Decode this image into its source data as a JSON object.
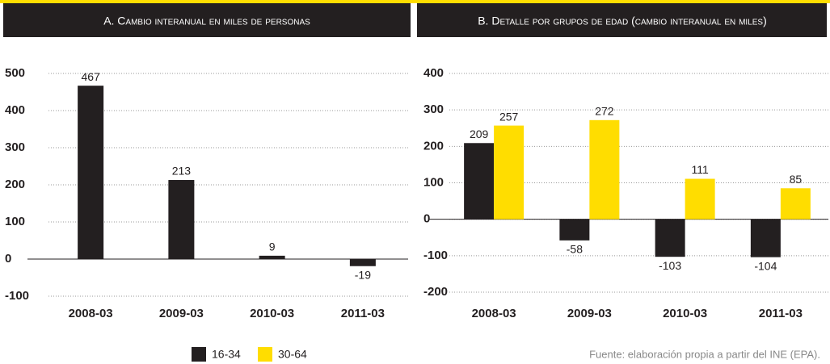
{
  "chart_data": [
    {
      "type": "bar",
      "title": "A. Cambio interanual en miles de personas",
      "categories": [
        "2008-03",
        "2009-03",
        "2010-03",
        "2011-03"
      ],
      "values": [
        467,
        213,
        9,
        -19
      ],
      "color": "#231f20",
      "ylim": [
        -100,
        500
      ],
      "yticks": [
        -100,
        0,
        100,
        200,
        300,
        400,
        500
      ],
      "grid": true
    },
    {
      "type": "grouped-bar",
      "title": "B. Detalle por grupos de edad (cambio interanual en miles)",
      "categories": [
        "2008-03",
        "2009-03",
        "2010-03",
        "2011-03"
      ],
      "series": [
        {
          "name": "16-34",
          "color": "#231f20",
          "values": [
            209,
            -58,
            -103,
            -104
          ]
        },
        {
          "name": "30-64",
          "color": "#ffdd00",
          "values": [
            257,
            272,
            111,
            85
          ]
        }
      ],
      "ylim": [
        -200,
        400
      ],
      "yticks": [
        -200,
        -100,
        0,
        100,
        200,
        300,
        400
      ],
      "grid": true,
      "legend": "bottom"
    }
  ],
  "source": "Fuente: elaboración propia a partir del INE (EPA)."
}
